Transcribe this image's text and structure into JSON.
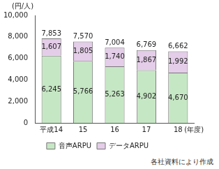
{
  "chart_data": {
    "type": "bar",
    "stacked": true,
    "data_labels": true,
    "legend": "bottom",
    "grid": false,
    "y_label": "(円/人)",
    "x_label": "(年度)",
    "annotations": [
      "各社資料により作成"
    ],
    "categories": [
      "平成14",
      "15",
      "16",
      "17",
      "18"
    ],
    "series": [
      {
        "name": "音声ARPU",
        "color": "#c6e7c4",
        "values": [
          6245,
          5766,
          5263,
          4902,
          4670
        ],
        "value_labels": [
          "6,245",
          "5,766",
          "5,263",
          "4,902",
          "4,670"
        ]
      },
      {
        "name": "データARPU",
        "color": "#e4cde8",
        "values": [
          1607,
          1805,
          1740,
          1867,
          1992
        ],
        "value_labels": [
          "1,607",
          "1,805",
          "1,740",
          "1,867",
          "1,992"
        ]
      }
    ],
    "totals": [
      7853,
      7570,
      7004,
      6769,
      6662
    ],
    "total_labels": [
      "7,853",
      "7,570",
      "7,004",
      "6,769",
      "6,662"
    ],
    "ylim": [
      0,
      10000
    ],
    "yticks": [
      0,
      {
        "value": 2000,
        "label": "2,000"
      },
      {
        "value": 4000,
        "label": "4,000"
      },
      {
        "value": 6000,
        "label": "6,000"
      },
      {
        "value": 8000,
        "label": "8,000"
      },
      {
        "value": 10000,
        "label": "10,000"
      }
    ]
  }
}
